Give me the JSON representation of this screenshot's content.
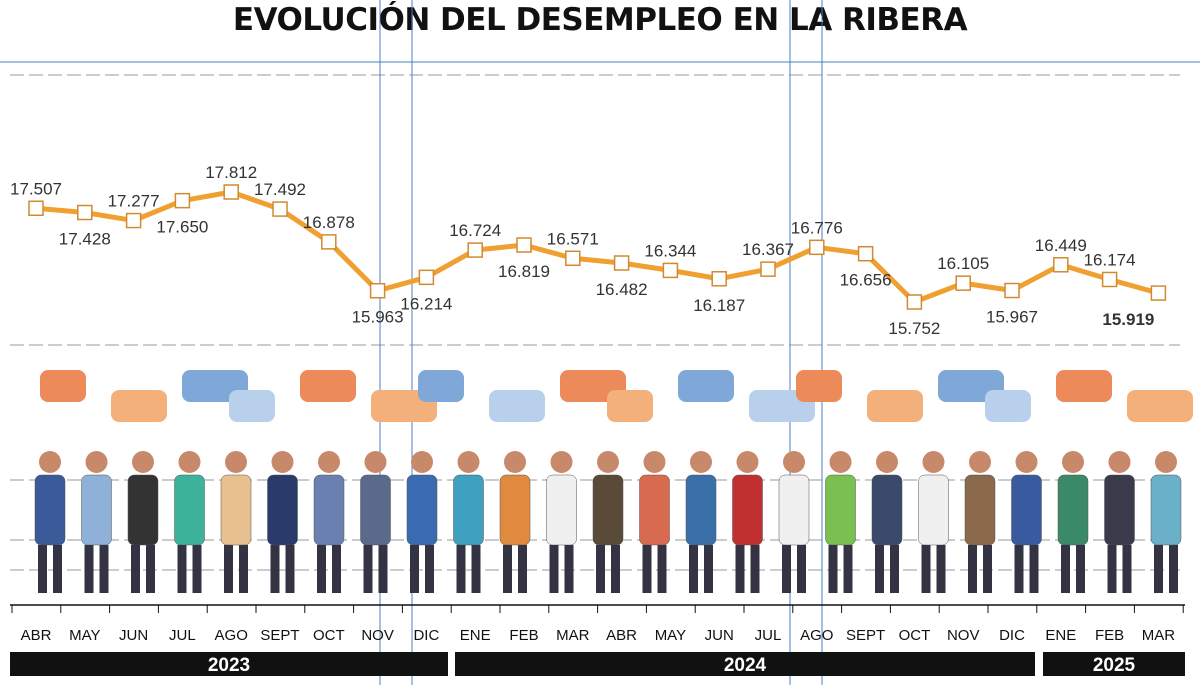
{
  "chart_data": {
    "type": "line",
    "title": "EVOLUCIÓN DEL DESEMPLEO EN LA RIBERA",
    "categories": [
      "ABR",
      "MAY",
      "JUN",
      "JUL",
      "AGO",
      "SEPT",
      "OCT",
      "NOV",
      "DIC",
      "ENE",
      "FEB",
      "MAR",
      "ABR",
      "MAY",
      "JUN",
      "JUL",
      "AGO",
      "SEPT",
      "OCT",
      "NOV",
      "DIC",
      "ENE",
      "FEB",
      "MAR"
    ],
    "values": [
      17507,
      17428,
      17277,
      17650,
      17812,
      17492,
      16878,
      15963,
      16214,
      16724,
      16819,
      16571,
      16482,
      16344,
      16187,
      16367,
      16776,
      16656,
      15752,
      16105,
      15967,
      16449,
      16174,
      15919
    ],
    "value_labels": [
      "17.507",
      "17.428",
      "17.277",
      "17.650",
      "17.812",
      "17.492",
      "16.878",
      "15.963",
      "16.214",
      "16.724",
      "16.819",
      "16.571",
      "16.482",
      "16.344",
      "16.187",
      "16.367",
      "16.776",
      "16.656",
      "15.752",
      "16.105",
      "15.967",
      "16.449",
      "16.174",
      "15.919"
    ],
    "years": [
      {
        "label": "2023",
        "months": 9
      },
      {
        "label": "2024",
        "months": 12
      },
      {
        "label": "2025",
        "months": 3
      }
    ],
    "xlabel": "",
    "ylabel": "",
    "line_color": "#f0a030",
    "grid": false,
    "legend": "none"
  }
}
